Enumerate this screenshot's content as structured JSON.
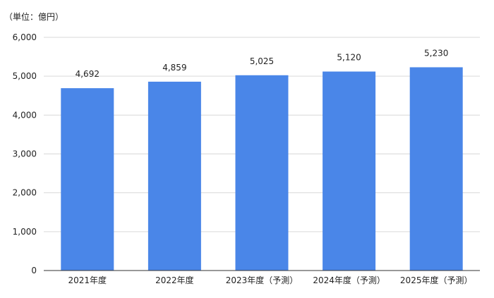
{
  "chart_data": {
    "type": "bar",
    "unit_label": "（単位：億円）",
    "categories": [
      "2021年度",
      "2022年度",
      "2023年度（予測）",
      "2024年度（予測）",
      "2025年度（予測）"
    ],
    "values": [
      4692,
      4859,
      5025,
      5120,
      5230
    ],
    "value_labels": [
      "4,692",
      "4,859",
      "5,025",
      "5,120",
      "5,230"
    ],
    "ylim": [
      0,
      6000
    ],
    "yticks": [
      0,
      1000,
      2000,
      3000,
      4000,
      5000,
      6000
    ],
    "ytick_labels": [
      "0",
      "1,000",
      "2,000",
      "3,000",
      "4,000",
      "5,000",
      "6,000"
    ],
    "grid": true,
    "legend": "none",
    "bar_color": "#4a86e8",
    "grid_color": "#d9d9d9",
    "axis_color": "#333333"
  }
}
